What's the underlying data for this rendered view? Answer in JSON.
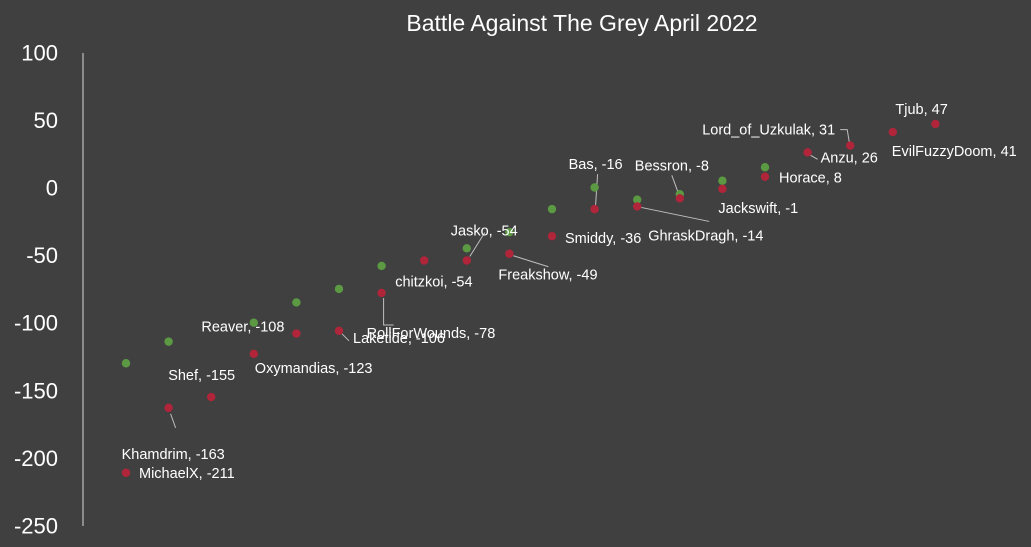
{
  "chart_data": {
    "type": "scatter",
    "title": "Battle Against The Grey April 2022",
    "ylim": [
      -250,
      100
    ],
    "yticks": [
      "100",
      "50",
      "0",
      "-50",
      "-100",
      "-150",
      "-200",
      "-250"
    ],
    "ytick_values": [
      100,
      50,
      0,
      -50,
      -100,
      -150,
      -200,
      -250
    ],
    "grid": false,
    "legend": "none",
    "colors": {
      "red": "#b0253a",
      "green": "#5b9a43",
      "background": "#404040",
      "text": "#ffffff"
    },
    "series": [
      {
        "color": "red",
        "points": [
          {
            "x": 1,
            "y": -211,
            "label": "MichaelX, -211"
          },
          {
            "x": 2,
            "y": -163,
            "label": "Khamdrim, -163"
          },
          {
            "x": 3,
            "y": -155,
            "label": "Shef, -155"
          },
          {
            "x": 4,
            "y": -123,
            "label": "Oxymandias, -123"
          },
          {
            "x": 5,
            "y": -108,
            "label": "Reaver, -108"
          },
          {
            "x": 6,
            "y": -106,
            "label": "Laketide, -106"
          },
          {
            "x": 7,
            "y": -78,
            "label": "RollForWounds, -78"
          },
          {
            "x": 8,
            "y": -54,
            "label": "chitzkoi, -54"
          },
          {
            "x": 9,
            "y": -54,
            "label": "Jasko, -54"
          },
          {
            "x": 10,
            "y": -49,
            "label": "Freakshow, -49"
          },
          {
            "x": 11,
            "y": -36,
            "label": "Smiddy, -36"
          },
          {
            "x": 12,
            "y": -16,
            "label": "Bas, -16"
          },
          {
            "x": 13,
            "y": -14,
            "label": "GhraskDragh, -14"
          },
          {
            "x": 14,
            "y": -8,
            "label": "Bessron, -8"
          },
          {
            "x": 15,
            "y": -1,
            "label": "Jackswift, -1"
          },
          {
            "x": 16,
            "y": 8,
            "label": "Horace, 8"
          },
          {
            "x": 17,
            "y": 26,
            "label": "Anzu, 26"
          },
          {
            "x": 18,
            "y": 31,
            "label": "Lord_of_Uzkulak, 31"
          },
          {
            "x": 19,
            "y": 41,
            "label": "EvilFuzzyDoom, 41"
          },
          {
            "x": 20,
            "y": 47,
            "label": "Tjub, 47"
          }
        ]
      },
      {
        "color": "green",
        "points": [
          {
            "x": 1,
            "y": -130
          },
          {
            "x": 2,
            "y": -114
          },
          {
            "x": 4,
            "y": -100
          },
          {
            "x": 5,
            "y": -85
          },
          {
            "x": 6,
            "y": -75
          },
          {
            "x": 7,
            "y": -58
          },
          {
            "x": 9,
            "y": -45
          },
          {
            "x": 10,
            "y": -33
          },
          {
            "x": 11,
            "y": -16
          },
          {
            "x": 12,
            "y": 0
          },
          {
            "x": 13,
            "y": -9
          },
          {
            "x": 14,
            "y": -5
          },
          {
            "x": 15,
            "y": 5
          },
          {
            "x": 16,
            "y": 15
          }
        ]
      }
    ]
  }
}
